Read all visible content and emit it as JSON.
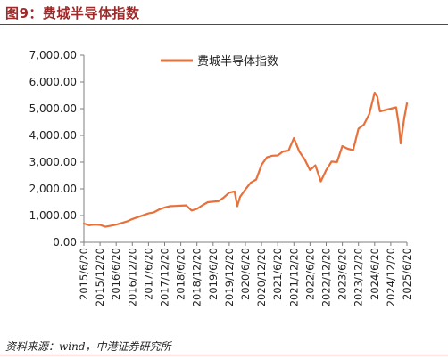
{
  "figure": {
    "title": "图9：费城半导体指数",
    "source": "资料来源：wind，中港证券研究所"
  },
  "colors": {
    "line": "#e8703a",
    "title": "#9b2a2a",
    "axis": "#7f7f7f"
  },
  "chart_data": {
    "type": "line",
    "title": "",
    "xlabel": "",
    "ylabel": "",
    "ylim": [
      0,
      7000
    ],
    "y_ticks": [
      0,
      1000,
      2000,
      3000,
      4000,
      5000,
      6000,
      7000
    ],
    "y_tick_labels": [
      "0.00",
      "1,000.00",
      "2,000.00",
      "3,000.00",
      "4,000.00",
      "5,000.00",
      "6,000.00",
      "7,000.00"
    ],
    "x_ticks": [
      "2015/6/20",
      "2015/12/20",
      "2016/6/20",
      "2016/12/20",
      "2017/6/20",
      "2017/12/20",
      "2018/6/20",
      "2018/12/20",
      "2019/6/20",
      "2019/12/20",
      "2020/6/20",
      "2020/12/20",
      "2021/6/20",
      "2021/12/20",
      "2022/6/20",
      "2022/12/20",
      "2023/6/20",
      "2023/12/20",
      "2024/6/20",
      "2024/12/20",
      "2025/6/20"
    ],
    "grid": false,
    "legend": "top-center",
    "series": [
      {
        "name": "费城半导体指数",
        "x": [
          "2015/6/20",
          "2015/8/20",
          "2015/10/20",
          "2015/12/20",
          "2016/2/20",
          "2016/4/20",
          "2016/6/20",
          "2016/8/20",
          "2016/10/20",
          "2016/12/20",
          "2017/2/20",
          "2017/4/20",
          "2017/6/20",
          "2017/8/20",
          "2017/10/20",
          "2017/12/20",
          "2018/2/20",
          "2018/4/20",
          "2018/6/20",
          "2018/8/20",
          "2018/10/20",
          "2018/12/20",
          "2019/2/20",
          "2019/4/20",
          "2019/6/20",
          "2019/8/20",
          "2019/10/20",
          "2019/12/20",
          "2020/2/20",
          "2020/3/20",
          "2020/4/20",
          "2020/6/20",
          "2020/8/20",
          "2020/10/20",
          "2020/12/20",
          "2021/2/20",
          "2021/4/20",
          "2021/6/20",
          "2021/8/20",
          "2021/10/20",
          "2021/12/20",
          "2022/2/20",
          "2022/4/20",
          "2022/6/20",
          "2022/8/20",
          "2022/10/20",
          "2022/12/20",
          "2023/2/20",
          "2023/4/20",
          "2023/6/20",
          "2023/8/20",
          "2023/10/20",
          "2023/12/20",
          "2024/2/20",
          "2024/4/20",
          "2024/6/20",
          "2024/7/20",
          "2024/8/20",
          "2024/10/20",
          "2024/12/20",
          "2025/2/20",
          "2025/3/20",
          "2025/4/10",
          "2025/5/20",
          "2025/6/20"
        ],
        "y": [
          700,
          640,
          660,
          650,
          580,
          620,
          660,
          720,
          780,
          870,
          940,
          1010,
          1080,
          1120,
          1230,
          1300,
          1350,
          1360,
          1370,
          1380,
          1190,
          1250,
          1380,
          1500,
          1520,
          1540,
          1680,
          1860,
          1900,
          1350,
          1700,
          1980,
          2230,
          2350,
          2900,
          3180,
          3240,
          3250,
          3400,
          3430,
          3900,
          3400,
          3100,
          2700,
          2880,
          2280,
          2700,
          3020,
          3000,
          3600,
          3500,
          3450,
          4250,
          4400,
          4800,
          5600,
          5450,
          4900,
          4950,
          5000,
          5050,
          4400,
          3700,
          4650,
          5200
        ]
      }
    ]
  }
}
